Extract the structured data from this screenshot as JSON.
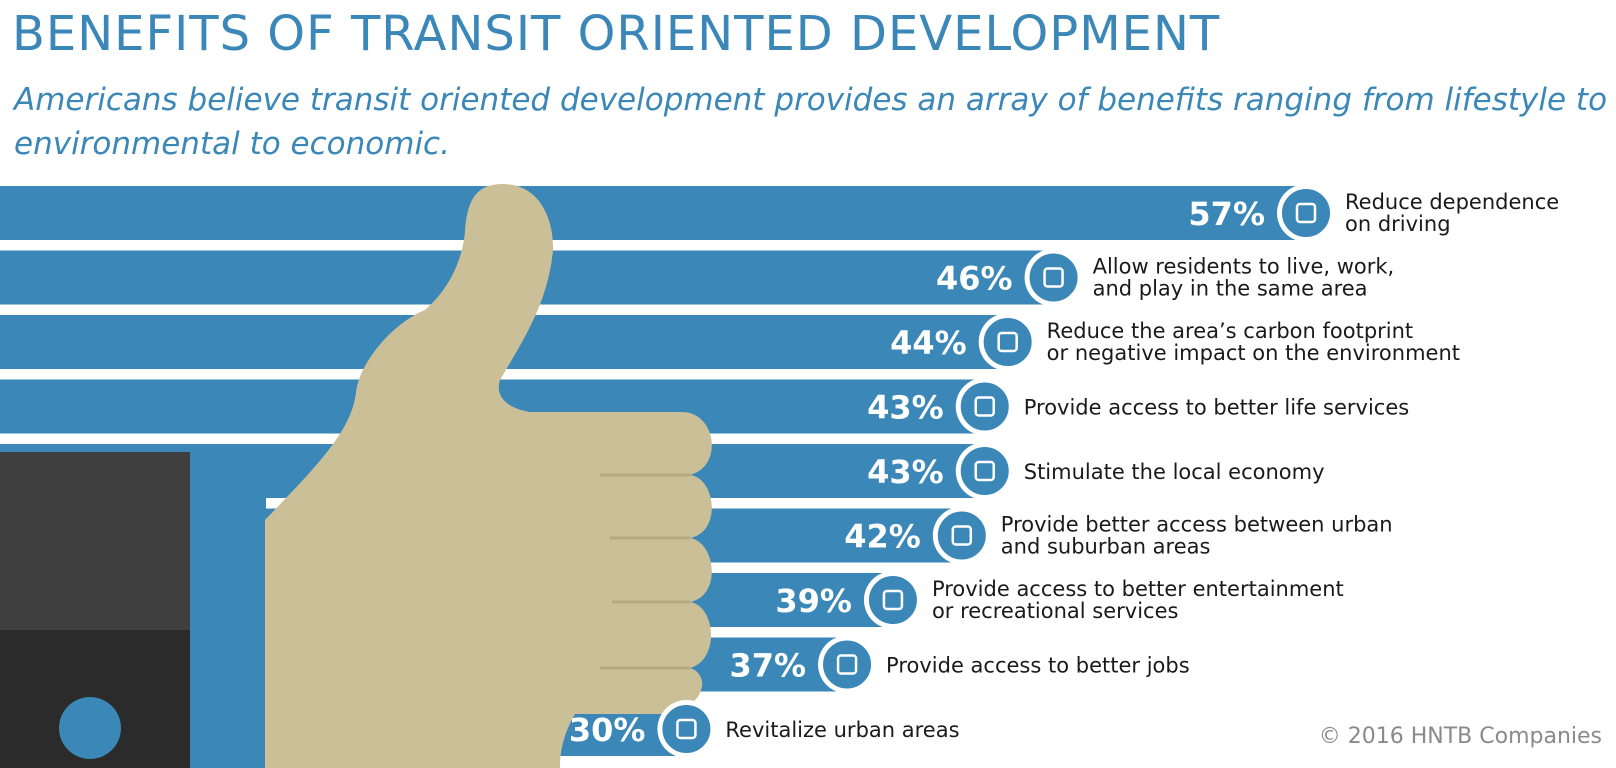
{
  "header": {
    "title": "BENEFITS OF TRANSIT ORIENTED DEVELOPMENT",
    "subtitle": "Americans believe transit oriented development provides an array of benefits ranging from lifestyle to environmental to economic."
  },
  "footer": {
    "copyright": "© 2016 HNTB Companies"
  },
  "colors": {
    "bar": "#3a87b8",
    "title": "#3a87b8",
    "hand": "#cbbf98",
    "sleeve_dark": "#333333",
    "text": "#1a1a1a"
  },
  "chart_data": {
    "type": "bar",
    "orientation": "horizontal",
    "title": "BENEFITS OF TRANSIT ORIENTED DEVELOPMENT",
    "unit": "%",
    "categories": [
      [
        "Reduce dependence",
        "on driving"
      ],
      [
        "Allow residents to live, work,",
        "and play in the same area"
      ],
      [
        "Reduce the area’s carbon footprint",
        "or negative impact on the environment"
      ],
      [
        "Provide access to better life services"
      ],
      [
        "Stimulate the local economy"
      ],
      [
        "Provide better access between urban",
        "and suburban areas"
      ],
      [
        "Provide access to better entertainment",
        "or recreational services"
      ],
      [
        "Provide access to better jobs"
      ],
      [
        "Revitalize urban areas"
      ]
    ],
    "values": [
      57,
      46,
      44,
      43,
      43,
      42,
      39,
      37,
      30
    ],
    "value_labels": [
      "57%",
      "46%",
      "44%",
      "43%",
      "43%",
      "42%",
      "39%",
      "37%",
      "30%"
    ],
    "icons": [
      "walking-person-icon",
      "bicycle-icon",
      "tram-icon",
      "shopping-basket-icon",
      "dollar-icon",
      "signpost-icon",
      "camera-icon",
      "briefcase-icon",
      "city-map-icon"
    ],
    "illustration": "thumbs-up-hand"
  }
}
